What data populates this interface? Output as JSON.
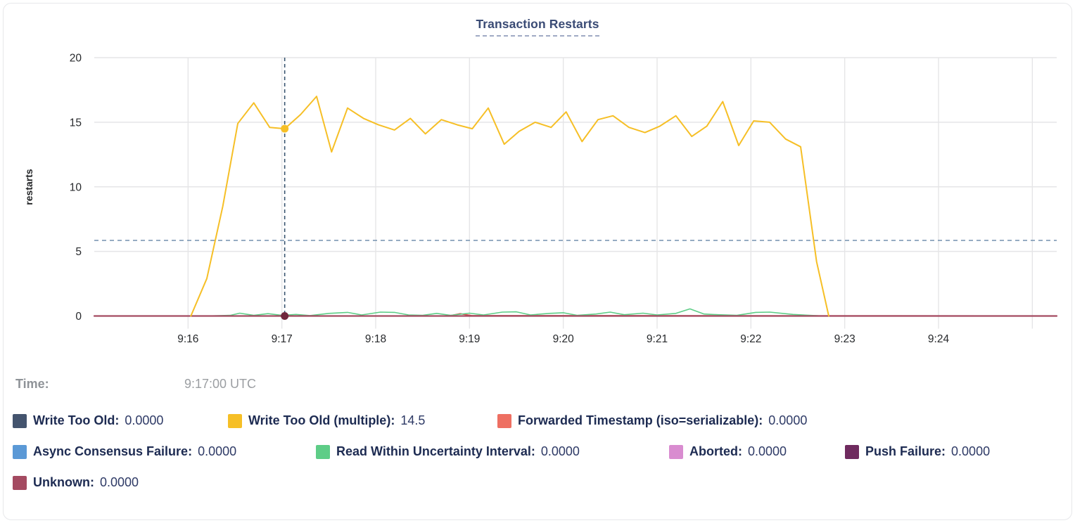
{
  "header": {
    "title": "Transaction Restarts"
  },
  "time_row": {
    "label": "Time:",
    "value": "9:17:00 UTC"
  },
  "legend": {
    "rows": [
      [
        {
          "label": "Write Too Old:",
          "value": "0.0000",
          "color": "#44546e"
        },
        {
          "label": "Write Too Old (multiple):",
          "value": "14.5",
          "color": "#f6bf26"
        },
        {
          "label": "Forwarded Timestamp (iso=serializable):",
          "value": "0.0000",
          "color": "#ee6f62"
        }
      ],
      [
        {
          "label": "Async Consensus Failure:",
          "value": "0.0000",
          "color": "#5b99d6"
        },
        {
          "label": "Read Within Uncertainty Interval:",
          "value": "0.0000",
          "color": "#5ecd87"
        },
        {
          "label": "Aborted:",
          "value": "0.0000",
          "color": "#d98cd0"
        },
        {
          "label": "Push Failure:",
          "value": "0.0000",
          "color": "#6f2b5f"
        }
      ],
      [
        {
          "label": "Unknown:",
          "value": "0.0000",
          "color": "#a44a61"
        }
      ]
    ]
  },
  "chart_data": {
    "type": "line",
    "title": "Transaction Restarts",
    "xlabel": "",
    "ylabel": "restarts",
    "ylim": [
      0,
      20
    ],
    "yticks": [
      0,
      5,
      10,
      15,
      20
    ],
    "x_domain_minutes_after_9_15": [
      0,
      10.26
    ],
    "xticks": [
      {
        "t": 1,
        "label": "9:16"
      },
      {
        "t": 2,
        "label": "9:17"
      },
      {
        "t": 3,
        "label": "9:18"
      },
      {
        "t": 4,
        "label": "9:19"
      },
      {
        "t": 5,
        "label": "9:20"
      },
      {
        "t": 6,
        "label": "9:21"
      },
      {
        "t": 7,
        "label": "9:22"
      },
      {
        "t": 8,
        "label": "9:23"
      },
      {
        "t": 9,
        "label": "9:24"
      },
      {
        "t": 10,
        "label": ""
      }
    ],
    "grid": true,
    "avg_line_value": 5.85,
    "avg_line_color": "#7391ae",
    "hover": {
      "t": 2.03,
      "time": "9:17:00 UTC",
      "line_color": "#3a5570",
      "dots": [
        {
          "series": "Write Too Old (multiple)",
          "value": 14.5,
          "color": "#f6bf26"
        },
        {
          "series": "Unknown",
          "value": 0,
          "color": "#70263c"
        }
      ]
    },
    "series": [
      {
        "id": "write-too-old",
        "name": "Write Too Old",
        "color": "#44546e",
        "width": 1.5,
        "points": [
          [
            0,
            0
          ],
          [
            10.26,
            0
          ]
        ]
      },
      {
        "id": "async-consensus-failure",
        "name": "Async Consensus Failure",
        "color": "#5b99d6",
        "width": 1.5,
        "points": [
          [
            0,
            0
          ],
          [
            10.26,
            0
          ]
        ]
      },
      {
        "id": "aborted",
        "name": "Aborted",
        "color": "#d98cd0",
        "width": 1.5,
        "points": [
          [
            0,
            0
          ],
          [
            10.26,
            0
          ]
        ]
      },
      {
        "id": "push-failure",
        "name": "Push Failure",
        "color": "#6f2b5f",
        "width": 1.5,
        "points": [
          [
            0,
            0
          ],
          [
            10.26,
            0
          ]
        ]
      },
      {
        "id": "forwarded-timestamp",
        "name": "Forwarded Timestamp (iso=serializable)",
        "color": "#d9534f",
        "width": 1.8,
        "points": [
          [
            0,
            0
          ],
          [
            3.78,
            0
          ],
          [
            3.9,
            0.18
          ],
          [
            4.02,
            0.03
          ],
          [
            10.26,
            0
          ]
        ]
      },
      {
        "id": "read-within-uncertainty-interval",
        "name": "Read Within Uncertainty Interval",
        "color": "#5ecd87",
        "width": 1.6,
        "points": [
          [
            1.2,
            0
          ],
          [
            1.45,
            0.05
          ],
          [
            1.55,
            0.22
          ],
          [
            1.7,
            0.05
          ],
          [
            1.85,
            0.18
          ],
          [
            2.0,
            0.05
          ],
          [
            2.15,
            0.12
          ],
          [
            2.3,
            0.03
          ],
          [
            2.5,
            0.2
          ],
          [
            2.7,
            0.28
          ],
          [
            2.85,
            0.08
          ],
          [
            3.05,
            0.3
          ],
          [
            3.2,
            0.28
          ],
          [
            3.35,
            0.08
          ],
          [
            3.5,
            0.05
          ],
          [
            3.65,
            0.2
          ],
          [
            3.8,
            0.05
          ],
          [
            4.0,
            0.22
          ],
          [
            4.15,
            0.08
          ],
          [
            4.35,
            0.3
          ],
          [
            4.5,
            0.32
          ],
          [
            4.65,
            0.08
          ],
          [
            4.85,
            0.2
          ],
          [
            5.0,
            0.25
          ],
          [
            5.15,
            0.05
          ],
          [
            5.35,
            0.15
          ],
          [
            5.5,
            0.3
          ],
          [
            5.65,
            0.1
          ],
          [
            5.85,
            0.22
          ],
          [
            6.0,
            0.08
          ],
          [
            6.2,
            0.2
          ],
          [
            6.35,
            0.55
          ],
          [
            6.5,
            0.15
          ],
          [
            6.65,
            0.1
          ],
          [
            6.85,
            0.05
          ],
          [
            7.05,
            0.28
          ],
          [
            7.2,
            0.3
          ],
          [
            7.45,
            0.12
          ],
          [
            7.7,
            0.02
          ],
          [
            7.75,
            0
          ]
        ]
      },
      {
        "id": "unknown",
        "name": "Unknown",
        "color": "#a44a61",
        "width": 2.2,
        "points": [
          [
            0,
            0
          ],
          [
            10.26,
            0
          ]
        ]
      },
      {
        "id": "write-too-old-multiple",
        "name": "Write Too Old (multiple)",
        "color": "#f6bf26",
        "width": 2,
        "points": [
          [
            1.03,
            0
          ],
          [
            1.2,
            2.9
          ],
          [
            1.37,
            8.5
          ],
          [
            1.53,
            14.9
          ],
          [
            1.7,
            16.5
          ],
          [
            1.87,
            14.6
          ],
          [
            2.03,
            14.5
          ],
          [
            2.2,
            15.6
          ],
          [
            2.37,
            17.0
          ],
          [
            2.53,
            12.7
          ],
          [
            2.7,
            16.1
          ],
          [
            2.87,
            15.3
          ],
          [
            3.03,
            14.8
          ],
          [
            3.2,
            14.4
          ],
          [
            3.37,
            15.3
          ],
          [
            3.53,
            14.1
          ],
          [
            3.7,
            15.2
          ],
          [
            3.87,
            14.8
          ],
          [
            4.03,
            14.5
          ],
          [
            4.2,
            16.1
          ],
          [
            4.37,
            13.3
          ],
          [
            4.53,
            14.3
          ],
          [
            4.7,
            15.0
          ],
          [
            4.87,
            14.6
          ],
          [
            5.03,
            15.8
          ],
          [
            5.2,
            13.5
          ],
          [
            5.37,
            15.2
          ],
          [
            5.53,
            15.5
          ],
          [
            5.7,
            14.6
          ],
          [
            5.87,
            14.2
          ],
          [
            6.03,
            14.7
          ],
          [
            6.2,
            15.5
          ],
          [
            6.37,
            13.9
          ],
          [
            6.53,
            14.7
          ],
          [
            6.7,
            16.6
          ],
          [
            6.87,
            13.2
          ],
          [
            7.03,
            15.1
          ],
          [
            7.2,
            15.0
          ],
          [
            7.37,
            13.7
          ],
          [
            7.53,
            13.1
          ],
          [
            7.7,
            4.2
          ],
          [
            7.83,
            0
          ]
        ]
      }
    ],
    "legend_position": "bottom"
  }
}
